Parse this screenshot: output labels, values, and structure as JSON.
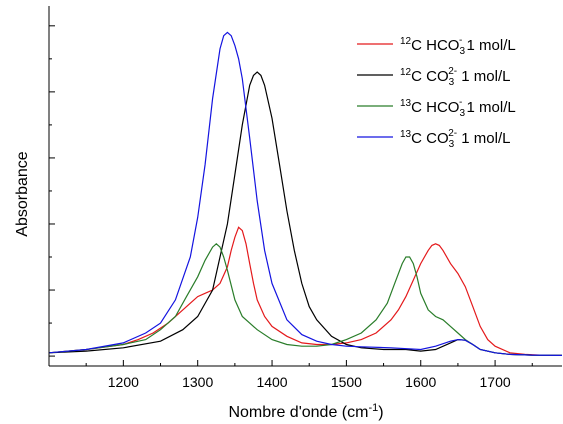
{
  "chart_data": {
    "type": "line",
    "title": "",
    "xlabel": "Nombre d'onde (cm",
    "xlabel_sup": "-1",
    "xlabel_close": ")",
    "ylabel": "Absorbance",
    "xlim": [
      1100,
      1790
    ],
    "ylim": [
      -0.03,
      1.06
    ],
    "x_ticks": [
      1200,
      1300,
      1400,
      1500,
      1600,
      1700
    ],
    "y_tick_labels_shown": false,
    "grid": false,
    "legend_position": "top-right",
    "series": [
      {
        "legend_pre": "12",
        "legend_main": "C HCO",
        "legend_sub": "3",
        "legend_sup": "-",
        "legend_post": " 1 mol/L",
        "color": "#e41a1c",
        "x": [
          1100,
          1150,
          1200,
          1220,
          1240,
          1260,
          1280,
          1290,
          1300,
          1310,
          1320,
          1330,
          1340,
          1345,
          1350,
          1355,
          1360,
          1365,
          1370,
          1375,
          1380,
          1390,
          1400,
          1420,
          1440,
          1460,
          1480,
          1500,
          1520,
          1540,
          1560,
          1570,
          1580,
          1590,
          1600,
          1610,
          1615,
          1620,
          1625,
          1630,
          1640,
          1650,
          1660,
          1670,
          1680,
          1690,
          1700,
          1720,
          1740,
          1760,
          1790
        ],
        "y": [
          0.01,
          0.02,
          0.035,
          0.05,
          0.07,
          0.1,
          0.14,
          0.16,
          0.18,
          0.19,
          0.2,
          0.22,
          0.27,
          0.32,
          0.36,
          0.39,
          0.38,
          0.34,
          0.28,
          0.22,
          0.17,
          0.12,
          0.09,
          0.06,
          0.04,
          0.035,
          0.035,
          0.04,
          0.05,
          0.07,
          0.11,
          0.14,
          0.18,
          0.23,
          0.28,
          0.32,
          0.335,
          0.34,
          0.335,
          0.32,
          0.28,
          0.25,
          0.21,
          0.15,
          0.09,
          0.05,
          0.03,
          0.01,
          0.005,
          0.003,
          0.002
        ]
      },
      {
        "legend_pre": "12",
        "legend_main": "C CO",
        "legend_sub": "3",
        "legend_sup": "2-",
        "legend_post": " 1 mol/L",
        "color": "#000000",
        "x": [
          1100,
          1150,
          1200,
          1250,
          1280,
          1300,
          1320,
          1340,
          1350,
          1360,
          1370,
          1375,
          1380,
          1385,
          1390,
          1400,
          1410,
          1420,
          1430,
          1440,
          1450,
          1460,
          1480,
          1500,
          1520,
          1550,
          1580,
          1600,
          1620,
          1640,
          1650,
          1660,
          1670,
          1680,
          1700,
          1720,
          1750,
          1790
        ],
        "y": [
          0.01,
          0.015,
          0.025,
          0.045,
          0.08,
          0.12,
          0.2,
          0.4,
          0.55,
          0.7,
          0.82,
          0.85,
          0.86,
          0.85,
          0.82,
          0.72,
          0.58,
          0.44,
          0.32,
          0.22,
          0.15,
          0.11,
          0.06,
          0.035,
          0.025,
          0.02,
          0.02,
          0.015,
          0.02,
          0.04,
          0.05,
          0.048,
          0.035,
          0.02,
          0.01,
          0.005,
          0.003,
          0.002
        ]
      },
      {
        "legend_pre": "13",
        "legend_main": "C HCO",
        "legend_sub": "3",
        "legend_sup": "-",
        "legend_post": " 1 mol/L",
        "color": "#2a7d2a",
        "x": [
          1100,
          1150,
          1200,
          1230,
          1250,
          1270,
          1285,
          1300,
          1310,
          1320,
          1325,
          1330,
          1335,
          1340,
          1350,
          1360,
          1370,
          1380,
          1400,
          1420,
          1440,
          1460,
          1480,
          1500,
          1520,
          1540,
          1555,
          1565,
          1575,
          1580,
          1585,
          1590,
          1595,
          1600,
          1610,
          1620,
          1630,
          1640,
          1650,
          1660,
          1670,
          1680,
          1700,
          1720,
          1750,
          1790
        ],
        "y": [
          0.01,
          0.02,
          0.035,
          0.05,
          0.08,
          0.12,
          0.18,
          0.24,
          0.29,
          0.33,
          0.34,
          0.33,
          0.3,
          0.26,
          0.17,
          0.12,
          0.1,
          0.08,
          0.05,
          0.035,
          0.03,
          0.03,
          0.035,
          0.05,
          0.07,
          0.11,
          0.16,
          0.22,
          0.28,
          0.3,
          0.3,
          0.28,
          0.24,
          0.19,
          0.14,
          0.12,
          0.11,
          0.09,
          0.07,
          0.05,
          0.035,
          0.02,
          0.01,
          0.005,
          0.003,
          0.002
        ]
      },
      {
        "legend_pre": "13",
        "legend_main": "C CO",
        "legend_sub": "3",
        "legend_sup": "2-",
        "legend_post": " 1 mol/L",
        "color": "#1414e0",
        "x": [
          1100,
          1150,
          1200,
          1230,
          1250,
          1270,
          1290,
          1300,
          1310,
          1320,
          1330,
          1335,
          1340,
          1345,
          1350,
          1355,
          1360,
          1370,
          1380,
          1390,
          1400,
          1420,
          1440,
          1460,
          1480,
          1500,
          1520,
          1560,
          1600,
          1620,
          1640,
          1650,
          1660,
          1670,
          1680,
          1700,
          1720,
          1750,
          1790
        ],
        "y": [
          0.01,
          0.02,
          0.04,
          0.07,
          0.1,
          0.17,
          0.3,
          0.42,
          0.58,
          0.78,
          0.93,
          0.97,
          0.98,
          0.97,
          0.94,
          0.9,
          0.84,
          0.66,
          0.47,
          0.32,
          0.22,
          0.11,
          0.065,
          0.045,
          0.035,
          0.03,
          0.028,
          0.025,
          0.02,
          0.03,
          0.045,
          0.05,
          0.048,
          0.035,
          0.02,
          0.01,
          0.005,
          0.003,
          0.002
        ]
      }
    ]
  }
}
